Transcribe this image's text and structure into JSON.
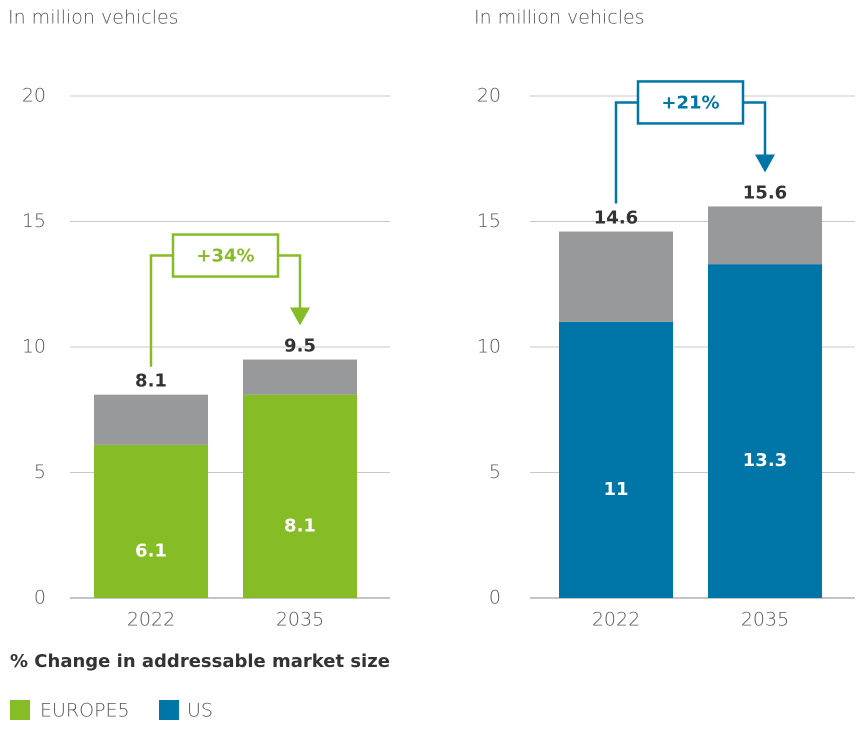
{
  "chart_data": [
    {
      "type": "bar",
      "stacked": true,
      "ylabel": "In million vehicles",
      "categories": [
        "2022",
        "2035"
      ],
      "series": [
        {
          "name": "EUROPE5",
          "color": "#86bc25",
          "values": [
            6.1,
            8.1
          ]
        },
        {
          "color": "#97999b",
          "values": [
            2.0,
            1.4
          ]
        }
      ],
      "totals": [
        8.1,
        9.5
      ],
      "annotation": "+34%",
      "ylim": [
        0,
        20
      ],
      "yticks": [
        0,
        5,
        10,
        15,
        20
      ],
      "grid": true
    },
    {
      "type": "bar",
      "stacked": true,
      "ylabel": "In million vehicles",
      "categories": [
        "2022",
        "2035"
      ],
      "series": [
        {
          "name": "US",
          "color": "#0076a8",
          "values": [
            11.0,
            13.3
          ]
        },
        {
          "color": "#97999b",
          "values": [
            3.6,
            2.3
          ]
        }
      ],
      "totals": [
        14.6,
        15.6
      ],
      "annotation": "+21%",
      "ylim": [
        0,
        20
      ],
      "yticks": [
        0,
        5,
        10,
        15,
        20
      ],
      "grid": true
    }
  ],
  "legend_title": "% Change in addressable market size"
}
